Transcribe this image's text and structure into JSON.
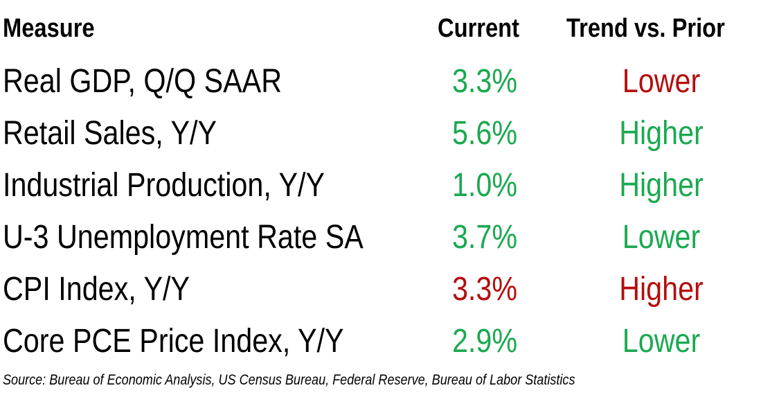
{
  "colors": {
    "positive": "#1aa950",
    "negative": "#b50d0d",
    "text": "#000000",
    "background": "#ffffff"
  },
  "chart_data": {
    "type": "table",
    "columns": [
      "Measure",
      "Current",
      "Trend vs. Prior"
    ],
    "rows": [
      {
        "measure": "Real GDP, Q/Q SAAR",
        "current": "3.3%",
        "trend": "Lower",
        "current_color": "positive",
        "trend_color": "negative"
      },
      {
        "measure": "Retail Sales, Y/Y",
        "current": "5.6%",
        "trend": "Higher",
        "current_color": "positive",
        "trend_color": "positive"
      },
      {
        "measure": "Industrial Production, Y/Y",
        "current": "1.0%",
        "trend": "Higher",
        "current_color": "positive",
        "trend_color": "positive"
      },
      {
        "measure": "U-3 Unemployment Rate SA",
        "current": "3.7%",
        "trend": "Lower",
        "current_color": "positive",
        "trend_color": "positive"
      },
      {
        "measure": "CPI Index, Y/Y",
        "current": "3.3%",
        "trend": "Higher",
        "current_color": "negative",
        "trend_color": "negative"
      },
      {
        "measure": "Core PCE Price Index, Y/Y",
        "current": "2.9%",
        "trend": "Lower",
        "current_color": "positive",
        "trend_color": "positive"
      }
    ],
    "source": "Source: Bureau of Economic Analysis, US Census Bureau, Federal Reserve, Bureau of Labor Statistics"
  }
}
